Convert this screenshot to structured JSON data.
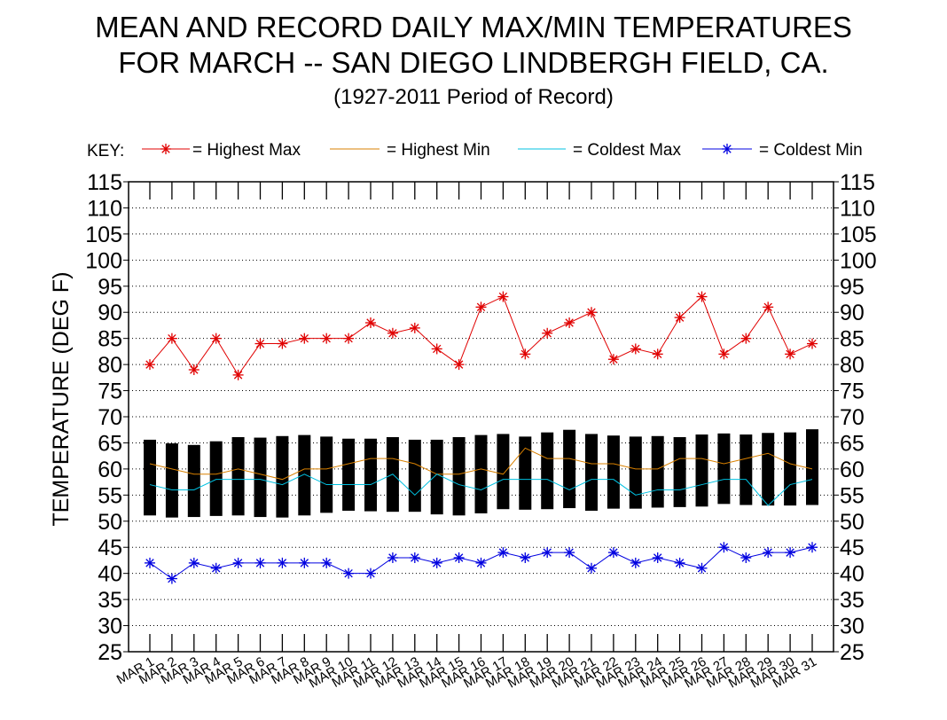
{
  "chart_data": {
    "type": "line",
    "title": "MEAN AND RECORD DAILY MAX/MIN TEMPERATURES",
    "subtitle": "FOR MARCH -- SAN DIEGO LINDBERGH FIELD, CA.",
    "period": "(1927-2011 Period of Record)",
    "ylabel": "TEMPERATURE (DEG F)",
    "xlabel": "",
    "ylim": [
      25,
      115
    ],
    "yticks": [
      25,
      30,
      35,
      40,
      45,
      50,
      55,
      60,
      65,
      70,
      75,
      80,
      85,
      90,
      95,
      100,
      105,
      110,
      115
    ],
    "grid": true,
    "legend_placement": "top",
    "key_label": "KEY:",
    "categories": [
      "MAR 1",
      "MAR 2",
      "MAR 3",
      "MAR 4",
      "MAR 5",
      "MAR 6",
      "MAR 7",
      "MAR 8",
      "MAR 9",
      "MAR 10",
      "MAR 11",
      "MAR 12",
      "MAR 13",
      "MAR 14",
      "MAR 15",
      "MAR 16",
      "MAR 17",
      "MAR 18",
      "MAR 19",
      "MAR 20",
      "MAR 21",
      "MAR 22",
      "MAR 23",
      "MAR 24",
      "MAR 25",
      "MAR 26",
      "MAR 27",
      "MAR 28",
      "MAR 29",
      "MAR 30",
      "MAR 31"
    ],
    "series": [
      {
        "name": "= Highest Max",
        "color": "#e00000",
        "marker": "asterisk",
        "values": [
          80,
          85,
          79,
          85,
          78,
          84,
          84,
          85,
          85,
          85,
          88,
          86,
          87,
          83,
          80,
          91,
          93,
          82,
          86,
          88,
          90,
          81,
          83,
          82,
          89,
          93,
          82,
          85,
          91,
          82,
          84
        ]
      },
      {
        "name": "= Highest Min",
        "color": "#d88000",
        "marker": "none",
        "values": [
          61,
          60,
          59,
          59,
          60,
          59,
          58,
          60,
          60,
          61,
          62,
          62,
          61,
          59,
          59,
          60,
          59,
          64,
          62,
          62,
          61,
          61,
          60,
          60,
          62,
          62,
          61,
          62,
          63,
          61,
          60
        ]
      },
      {
        "name": "= Coldest Max",
        "color": "#00c0e0",
        "marker": "none",
        "values": [
          57,
          56,
          56,
          58,
          58,
          58,
          57,
          59,
          57,
          57,
          57,
          59,
          55,
          59,
          57,
          56,
          58,
          58,
          58,
          56,
          58,
          58,
          55,
          56,
          56,
          57,
          58,
          58,
          53,
          57,
          58
        ]
      },
      {
        "name": "= Coldest Min",
        "color": "#0000e0",
        "marker": "asterisk",
        "values": [
          42,
          39,
          42,
          41,
          42,
          42,
          42,
          42,
          42,
          40,
          40,
          43,
          43,
          42,
          43,
          42,
          44,
          43,
          44,
          44,
          41,
          44,
          42,
          43,
          42,
          41,
          45,
          43,
          44,
          44,
          45
        ]
      }
    ],
    "mean_bars": {
      "color": "#000000",
      "mean_max": [
        65.6,
        64.9,
        64.6,
        65.3,
        66.1,
        66.0,
        66.3,
        66.5,
        66.2,
        65.8,
        65.8,
        66.1,
        65.6,
        65.6,
        66.1,
        66.5,
        66.7,
        66.2,
        67.0,
        67.5,
        66.7,
        66.4,
        66.2,
        66.3,
        66.1,
        66.6,
        66.8,
        66.6,
        66.9,
        67.0,
        67.6
      ],
      "mean_min": [
        51.1,
        50.7,
        50.8,
        51.0,
        51.1,
        50.8,
        50.7,
        51.1,
        51.6,
        52.0,
        51.9,
        51.8,
        51.8,
        51.3,
        51.1,
        51.5,
        52.3,
        52.2,
        52.3,
        52.5,
        52.0,
        52.4,
        52.4,
        52.6,
        52.7,
        52.8,
        53.3,
        53.1,
        53.0,
        53.0,
        53.1
      ]
    }
  }
}
